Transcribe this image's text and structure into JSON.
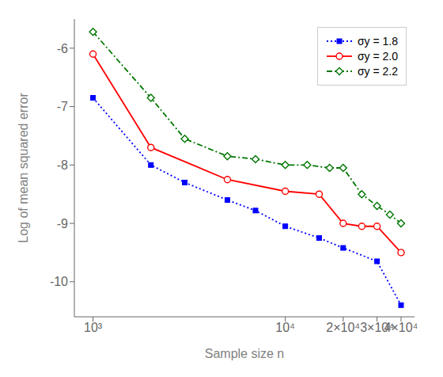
{
  "chart_data": {
    "type": "line",
    "x_label": "Sample size n",
    "y_label": "Log of mean squared error",
    "log": "x",
    "grid": false,
    "legend": "upper right",
    "xlim": [
      800,
      47000
    ],
    "ylim": [
      -10.6,
      -5.5
    ],
    "xticks": [
      {
        "value": 1000,
        "label": "10³"
      },
      {
        "value": 10000,
        "label": "10⁴"
      },
      {
        "value": 20000,
        "label": "2×10⁴"
      },
      {
        "value": 30000,
        "label": "3×10⁴"
      },
      {
        "value": 40000,
        "label": "4×10⁴"
      }
    ],
    "yticks": [
      -10,
      -9,
      -8,
      -7,
      -6
    ],
    "series": [
      {
        "name": "σy = 1.8",
        "color": "#0000ff",
        "marker": "square",
        "line_style": "dotted",
        "x": [
          1000,
          2000,
          3000,
          5000,
          7000,
          10000,
          15000,
          20000,
          30000,
          40000
        ],
        "values": [
          -6.85,
          -8.0,
          -8.3,
          -8.6,
          -8.78,
          -9.05,
          -9.25,
          -9.42,
          -9.65,
          -10.4
        ]
      },
      {
        "name": "σy = 2.0",
        "color": "#ff0000",
        "marker": "circle",
        "line_style": "solid",
        "x": [
          1000,
          2000,
          5000,
          10000,
          15000,
          20000,
          25000,
          30000,
          40000
        ],
        "values": [
          -6.1,
          -7.7,
          -8.25,
          -8.45,
          -8.5,
          -9.0,
          -9.05,
          -9.05,
          -9.5
        ]
      },
      {
        "name": "σy = 2.2",
        "color": "#007700",
        "marker": "diamond",
        "line_style": "dashdot",
        "x": [
          1000,
          2000,
          3000,
          5000,
          7000,
          10000,
          13000,
          17000,
          20000,
          25000,
          30000,
          35000,
          40000
        ],
        "values": [
          -5.72,
          -6.85,
          -7.55,
          -7.85,
          -7.9,
          -8.0,
          -8.0,
          -8.05,
          -8.05,
          -8.5,
          -8.7,
          -8.85,
          -9.0
        ]
      }
    ]
  }
}
